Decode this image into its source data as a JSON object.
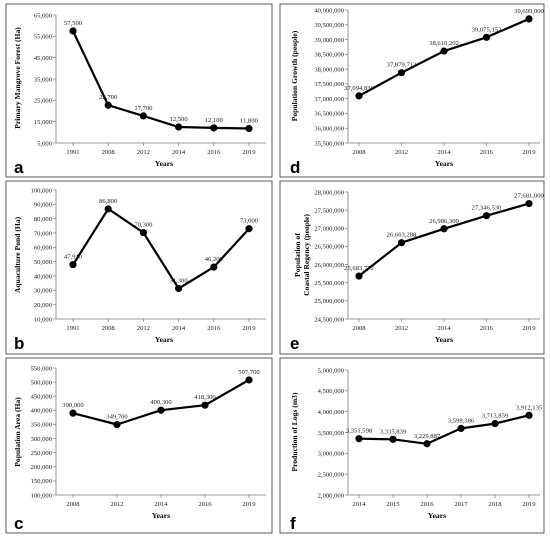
{
  "figure": {
    "panels": [
      {
        "id": "a",
        "letter": "a"
      },
      {
        "id": "d",
        "letter": "d"
      },
      {
        "id": "b",
        "letter": "b"
      },
      {
        "id": "e",
        "letter": "e"
      },
      {
        "id": "c",
        "letter": "c"
      },
      {
        "id": "f",
        "letter": "f"
      }
    ]
  },
  "chart_data": [
    {
      "panel": "a",
      "type": "line",
      "title": "",
      "xlabel": "Years",
      "ylabel": "Primary Mangrove Forest (Ha)",
      "categories": [
        "1991",
        "2008",
        "2012",
        "2014",
        "2016",
        "2019"
      ],
      "series": [
        {
          "values": [
            57500,
            22700,
            17700,
            12500,
            12100,
            11800
          ]
        }
      ],
      "data_labels": [
        "57,500",
        "22,700",
        "17,700",
        "12,500",
        "12,100",
        "11,800"
      ],
      "ylim": [
        5000,
        65000
      ],
      "yticks": [
        "5,000",
        "15,000",
        "25,000",
        "35,000",
        "45,000",
        "55,000",
        "65,000"
      ],
      "grid": false
    },
    {
      "panel": "d",
      "type": "line",
      "title": "",
      "xlabel": "Years",
      "ylabel": "Population Growth (people)",
      "categories": [
        "2008",
        "2012",
        "2014",
        "2016",
        "2019"
      ],
      "series": [
        {
          "values": [
            37094836,
            37879713,
            38610202,
            39075152,
            39699000
          ]
        }
      ],
      "data_labels": [
        "37,094,836",
        "37,879,713",
        "38,610,202",
        "39,075,152",
        "39,699,000"
      ],
      "ylim": [
        35500000,
        40000000
      ],
      "yticks": [
        "35,500,000",
        "36,000,000",
        "36,500,000",
        "37,000,000",
        "37,500,000",
        "38,000,000",
        "38,500,000",
        "39,000,000",
        "39,500,000",
        "40,000,000"
      ],
      "grid": false
    },
    {
      "panel": "b",
      "type": "line",
      "title": "",
      "xlabel": "Years",
      "ylabel": "Aquaculture Pond (Ha)",
      "categories": [
        "1991",
        "2008",
        "2012",
        "2014",
        "2016",
        "2019"
      ],
      "series": [
        {
          "values": [
            47910,
            86800,
            70300,
            31300,
            46200,
            73000
          ]
        }
      ],
      "data_labels": [
        "47,910",
        "86,800",
        "70,300",
        "31,300",
        "46,200",
        "73,000"
      ],
      "ylim": [
        10000,
        100000
      ],
      "yticks": [
        "10,000",
        "20,000",
        "30,000",
        "40,000",
        "50,000",
        "60,000",
        "70,000",
        "80,000",
        "90,000",
        "100,000"
      ],
      "grid": false
    },
    {
      "panel": "e",
      "type": "line",
      "title": "",
      "xlabel": "Years",
      "ylabel": "Population of Coastal Regency (people)",
      "ylabel_lines": [
        "Population of",
        "Coastal Regency (people)"
      ],
      "categories": [
        "2008",
        "2012",
        "2014",
        "2016",
        "2019"
      ],
      "series": [
        {
          "values": [
            25683772,
            26603288,
            26986300,
            27346530,
            27681000
          ]
        }
      ],
      "data_labels": [
        "25,683,772",
        "26,603,288",
        "26,986,300",
        "27,346,530",
        "27,681,000"
      ],
      "ylim": [
        24500000,
        28000000
      ],
      "yticks": [
        "24,500,000",
        "25,000,000",
        "25,500,000",
        "26,000,000",
        "26,500,000",
        "27,000,000",
        "27,500,000",
        "28,000,000"
      ],
      "grid": false
    },
    {
      "panel": "c",
      "type": "line",
      "title": "",
      "xlabel": "Years",
      "ylabel": "Population Area (Ha)",
      "categories": [
        "2008",
        "2012",
        "2014",
        "2016",
        "2019"
      ],
      "series": [
        {
          "values": [
            390000,
            349700,
            400300,
            418300,
            507700
          ]
        }
      ],
      "data_labels": [
        "390,000",
        "349,700",
        "400,300",
        "418,300",
        "507,700"
      ],
      "ylim": [
        100000,
        550000
      ],
      "yticks": [
        "100,000",
        "150,000",
        "200,000",
        "250,000",
        "300,000",
        "350,000",
        "400,000",
        "450,000",
        "500,000",
        "550,000"
      ],
      "grid": false
    },
    {
      "panel": "f",
      "type": "line",
      "title": "",
      "xlabel": "Years",
      "ylabel": "Production of Logs (m3)",
      "categories": [
        "2014",
        "2015",
        "2016",
        "2017",
        "2018",
        "2019"
      ],
      "series": [
        {
          "values": [
            3351598,
            3335839,
            3229887,
            3598386,
            3713859,
            3912135
          ]
        }
      ],
      "data_labels": [
        "3,351,598",
        "3,335,839",
        "3,229,887",
        "3,598,386",
        "3,713,859",
        "3,912,135"
      ],
      "ylim": [
        2000000,
        5000000
      ],
      "yticks": [
        "2,000,000",
        "2,500,000",
        "3,000,000",
        "3,500,000",
        "4,000,000",
        "4,500,000",
        "5,000,000"
      ],
      "grid": false
    }
  ]
}
